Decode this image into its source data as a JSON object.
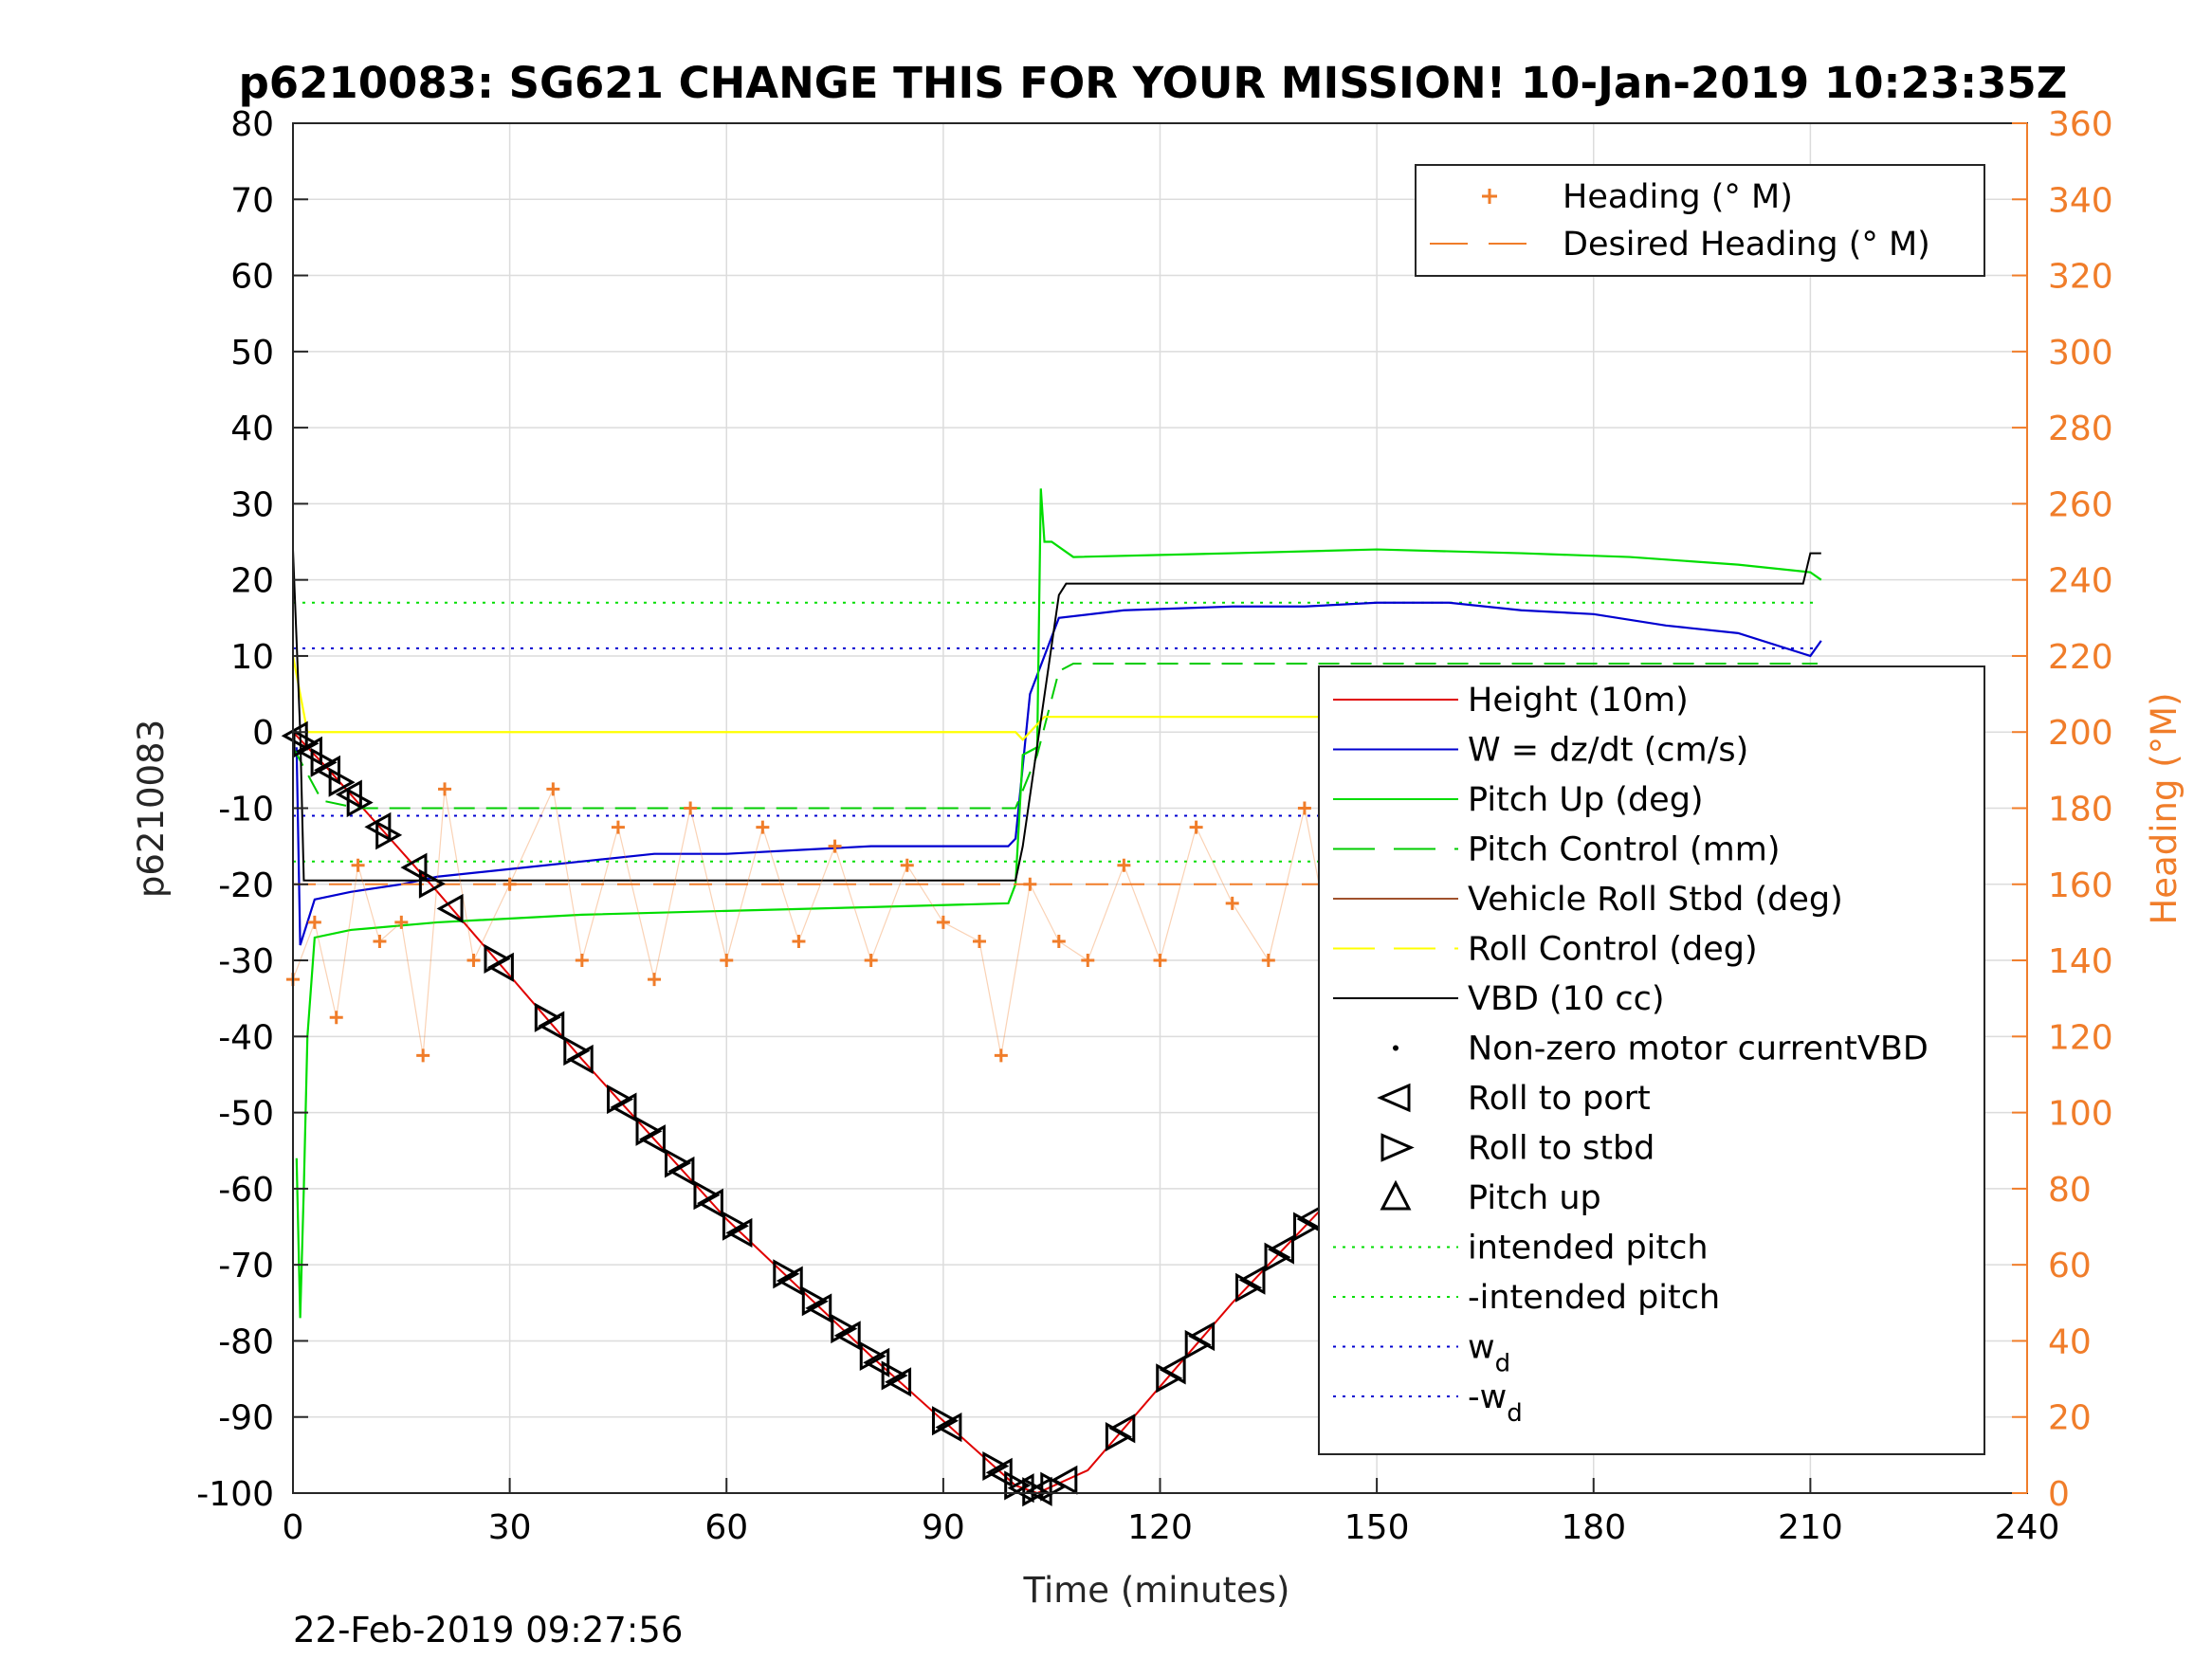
{
  "chart_data": {
    "type": "line",
    "title": "p6210083: SG621 CHANGE THIS FOR YOUR MISSION! 10-Jan-2019 10:23:35Z",
    "xlabel": "Time (minutes)",
    "ylabel_left": "p6210083",
    "ylabel_right": "Heading (°M)",
    "footer": "22-Feb-2019 09:27:56",
    "xlim": [
      0,
      240
    ],
    "ylim_left": [
      -100,
      80
    ],
    "ylim_right": [
      0,
      360
    ],
    "x_ticks": [
      0,
      30,
      60,
      90,
      120,
      150,
      180,
      210,
      240
    ],
    "y_left_ticks": [
      -100,
      -90,
      -80,
      -70,
      -60,
      -50,
      -40,
      -30,
      -20,
      -10,
      0,
      10,
      20,
      30,
      40,
      50,
      60,
      70,
      80
    ],
    "y_right_ticks": [
      0,
      20,
      40,
      60,
      80,
      100,
      120,
      140,
      160,
      180,
      200,
      220,
      240,
      260,
      280,
      300,
      320,
      340,
      360
    ],
    "grid": true,
    "colors": {
      "height": "#e00000",
      "w": "#0000d0",
      "pitch_up": "#00dd00",
      "pitch_control": "#00cc00",
      "vehicle_roll": "#a0522d",
      "roll_control": "#ffff00",
      "vbd": "#000000",
      "heading": "#f07d2a",
      "intended_pitch": "#00dd00",
      "wd": "#0000d0"
    },
    "legend_right_axis": [
      {
        "label": "Heading (° M)",
        "style": "plus"
      },
      {
        "label": "Desired Heading (° M)",
        "style": "dash"
      }
    ],
    "legend_left_axis": [
      {
        "label": "Height (10m)",
        "style": "line-height"
      },
      {
        "label": "W = dz/dt (cm/s)",
        "style": "line-w"
      },
      {
        "label": "Pitch Up (deg)",
        "style": "line-pitch"
      },
      {
        "label": "Pitch Control (mm)",
        "style": "dash-pitchctl"
      },
      {
        "label": "Vehicle Roll Stbd (deg)",
        "style": "line-roll"
      },
      {
        "label": "Roll Control (deg)",
        "style": "dash-rollctl"
      },
      {
        "label": "VBD (10 cc)",
        "style": "line-vbd"
      },
      {
        "label": "Non-zero motor currentVBD",
        "style": "dot"
      },
      {
        "label": "Roll to port",
        "style": "tri-left"
      },
      {
        "label": "Roll to stbd",
        "style": "tri-right"
      },
      {
        "label": "Pitch up",
        "style": "tri-up"
      },
      {
        "label": "intended pitch",
        "style": "dot-green"
      },
      {
        "label": "-intended pitch",
        "style": "dot-green"
      },
      {
        "label": "w",
        "sub": "d",
        "style": "dot-blue"
      },
      {
        "label": "-w",
        "sub": "d",
        "style": "dot-blue"
      }
    ],
    "series": [
      {
        "name": "Height (10m)",
        "x": [
          0,
          5,
          20,
          40,
          60,
          80,
          100,
          103,
          110,
          130,
          150,
          170,
          190,
          200,
          210
        ],
        "y": [
          0,
          -5,
          -21,
          -43,
          -64,
          -82,
          -99,
          -100,
          -97,
          -75,
          -55,
          -37,
          -15,
          -7,
          -1
        ]
      },
      {
        "name": "W = dz/dt (cm/s)",
        "x": [
          0.5,
          1,
          3,
          8,
          15,
          20,
          30,
          40,
          50,
          60,
          70,
          80,
          90,
          99,
          100,
          102,
          106,
          115,
          130,
          140,
          150,
          160,
          170,
          180,
          190,
          200,
          210,
          211.5
        ],
        "y": [
          -2,
          -28,
          -22,
          -21,
          -20,
          -19,
          -18,
          -17,
          -16,
          -16,
          -15.5,
          -15,
          -15,
          -15,
          -14,
          5,
          15,
          16,
          16.5,
          16.5,
          17,
          17,
          16,
          15.5,
          14,
          13,
          10,
          12
        ]
      },
      {
        "name": "Pitch Up (deg)",
        "x": [
          0.5,
          1,
          1.5,
          2,
          3,
          8,
          20,
          40,
          60,
          80,
          99,
          100,
          101,
          103,
          103.5,
          104,
          105,
          108,
          130,
          150,
          170,
          185,
          200,
          210,
          211.5
        ],
        "y": [
          -56,
          -77,
          -60,
          -40,
          -27,
          -26,
          -25,
          -24,
          -23.5,
          -23,
          -22.5,
          -20,
          -3,
          -2,
          32,
          25,
          25,
          23,
          23.5,
          24,
          23.5,
          23,
          22,
          21,
          20
        ]
      },
      {
        "name": "Pitch Control (mm)",
        "x": [
          0,
          4,
          9,
          100,
          103,
          106,
          108,
          120,
          150,
          180,
          211
        ],
        "y": [
          -2,
          -9,
          -10,
          -10,
          -3,
          8,
          9,
          9,
          9,
          9,
          9
        ]
      },
      {
        "name": "Roll Control (deg)",
        "x": [
          0,
          2,
          10,
          50,
          100,
          101,
          104,
          108,
          150,
          200,
          211
        ],
        "y": [
          10,
          0,
          0,
          0,
          0,
          -1,
          2,
          2,
          2,
          2,
          2
        ]
      },
      {
        "name": "VBD (10 cc)",
        "x": [
          0,
          1,
          1.5,
          2,
          20,
          60,
          100,
          101,
          106,
          107,
          150,
          209,
          210,
          211.5
        ],
        "y": [
          24,
          0,
          -19.5,
          -19.5,
          -19.5,
          -19.5,
          -19.5,
          -15,
          18,
          19.5,
          19.5,
          19.5,
          23.5,
          23.5
        ]
      },
      {
        "name": "Heading (° M)",
        "axis": "right",
        "x": [
          0,
          3,
          6,
          9,
          12,
          15,
          18,
          21,
          25,
          30,
          36,
          40,
          45,
          50,
          55,
          60,
          65,
          70,
          75,
          80,
          85,
          90,
          95,
          98,
          102,
          106,
          110,
          115,
          120,
          125,
          130,
          135,
          140,
          145,
          150,
          155,
          160,
          165,
          170,
          175,
          180,
          185,
          190,
          195,
          200,
          205,
          210,
          212
        ],
        "y": [
          135,
          150,
          125,
          165,
          145,
          150,
          115,
          185,
          140,
          160,
          185,
          140,
          175,
          135,
          180,
          140,
          175,
          145,
          170,
          140,
          165,
          150,
          145,
          115,
          160,
          145,
          140,
          165,
          140,
          175,
          155,
          140,
          180,
          130,
          175,
          185,
          120,
          175,
          145,
          170,
          150,
          170,
          145,
          165,
          150,
          160,
          115,
          200
        ]
      },
      {
        "name": "Desired Heading (° M)",
        "axis": "right",
        "x": [
          0,
          211
        ],
        "y": [
          160,
          160
        ]
      }
    ],
    "reference_lines_left": [
      {
        "name": "intended pitch",
        "y": 17
      },
      {
        "name": "-intended pitch",
        "y": -17
      },
      {
        "name": "w_d",
        "y": 11
      },
      {
        "name": "-w_d",
        "y": -11
      }
    ],
    "markers": {
      "pitch_up": {
        "x": [
          0.5,
          1.5,
          2.5,
          4,
          5,
          6.5,
          8,
          9,
          12,
          13,
          17,
          19,
          22,
          28,
          29,
          35,
          36,
          39,
          40,
          45,
          46,
          49,
          50,
          53,
          54,
          57,
          58,
          61,
          62,
          68,
          69,
          72,
          73,
          76,
          77,
          80,
          81,
          83,
          84,
          90,
          91,
          97,
          98,
          100,
          101,
          102.5,
          103.5,
          105,
          107,
          114,
          115,
          121,
          122,
          125,
          126,
          132,
          133,
          136,
          137,
          140,
          141,
          147,
          148,
          151,
          152,
          155,
          156,
          163,
          164,
          177,
          178,
          181,
          182,
          184,
          185,
          188,
          189,
          191,
          192,
          194,
          195,
          197,
          198,
          200,
          201,
          203,
          204,
          206,
          207,
          209,
          210
        ]
      }
    }
  }
}
